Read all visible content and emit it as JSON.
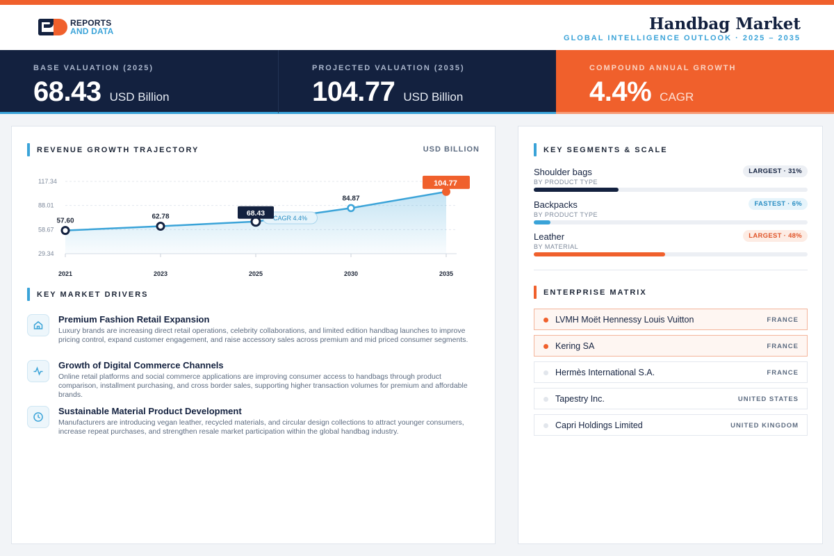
{
  "header": {
    "logo_line1": "REPORTS",
    "logo_line2": "AND DATA",
    "title": "Handbag Market",
    "subtitle": "GLOBAL INTELLIGENCE OUTLOOK  ·  2025 – 2035"
  },
  "kpis": [
    {
      "label": "BASE VALUATION (2025)",
      "value": "68.43",
      "unit": "USD Billion"
    },
    {
      "label": "PROJECTED VALUATION (2035)",
      "value": "104.77",
      "unit": "USD Billion"
    },
    {
      "label": "COMPOUND ANNUAL GROWTH",
      "value": "4.4%",
      "unit": "CAGR"
    }
  ],
  "chart_section": {
    "title": "REVENUE GROWTH TRAJECTORY",
    "unit": "USD BILLION"
  },
  "chart_data": {
    "type": "area",
    "title": "REVENUE GROWTH TRAJECTORY",
    "ylabel": "USD BILLION",
    "x": [
      "2021",
      "2023",
      "2025",
      "2030",
      "2035"
    ],
    "series": [
      {
        "values": [
          57.6,
          62.78,
          68.43,
          84.87,
          104.77
        ]
      }
    ],
    "yticks": [
      "117.34",
      "88.01",
      "58.67",
      "29.34"
    ],
    "ytick_values": [
      117.34,
      88.01,
      58.67,
      29.34
    ],
    "ylim": [
      29.34,
      117.34
    ],
    "grid": true,
    "highlight": {
      "base": "68.43",
      "final": "104.77"
    },
    "annotation": "CAGR 4.4%",
    "colors": {
      "line": "#3aa3d8",
      "base": "#13213f",
      "final": "#f0602c"
    }
  },
  "drivers": {
    "title": "KEY MARKET DRIVERS",
    "items": [
      {
        "icon": "home-icon",
        "title": "Premium Fashion Retail Expansion",
        "text": "Luxury brands are increasing direct retail operations, celebrity collaborations, and limited edition handbag launches to improve pricing control, expand customer engagement, and raise accessory sales across premium and mid priced consumer segments."
      },
      {
        "icon": "activity-icon",
        "title": "Growth of Digital Commerce Channels",
        "text": "Online retail platforms and social commerce applications are improving consumer access to handbags through product comparison, installment purchasing, and cross border sales, supporting higher transaction volumes for premium and affordable brands."
      },
      {
        "icon": "clock-icon",
        "title": "Sustainable Material Product Development",
        "text": "Manufacturers are introducing vegan leather, recycled materials, and circular design collections to attract younger consumers, increase repeat purchases, and strengthen resale market participation within the global handbag industry."
      }
    ]
  },
  "segments": {
    "title": "KEY SEGMENTS & SCALE",
    "items": [
      {
        "name": "Shoulder bags",
        "sub": "BY PRODUCT TYPE",
        "badge": "LARGEST · 31%",
        "share": 31,
        "color": "#13213f",
        "badge_bg": "#eceff4",
        "badge_fg": "#13213f"
      },
      {
        "name": "Backpacks",
        "sub": "BY PRODUCT TYPE",
        "badge": "FASTEST · 6%",
        "share": 6,
        "color": "#3aa3d8",
        "badge_bg": "#e6f4fb",
        "badge_fg": "#2a8ec3"
      },
      {
        "name": "Leather",
        "sub": "BY MATERIAL",
        "badge": "LARGEST · 48%",
        "share": 48,
        "color": "#f0602c",
        "badge_bg": "#fdece4",
        "badge_fg": "#e0552a"
      }
    ]
  },
  "enterprise": {
    "title": "ENTERPRISE MATRIX",
    "items": [
      {
        "name": "LVMH Moët Hennessy Louis Vuitton",
        "country": "FRANCE",
        "highlight": true
      },
      {
        "name": "Kering SA",
        "country": "FRANCE",
        "highlight": true
      },
      {
        "name": "Hermès International S.A.",
        "country": "FRANCE",
        "highlight": false
      },
      {
        "name": "Tapestry Inc.",
        "country": "UNITED STATES",
        "highlight": false
      },
      {
        "name": "Capri Holdings Limited",
        "country": "UNITED KINGDOM",
        "highlight": false
      }
    ]
  }
}
